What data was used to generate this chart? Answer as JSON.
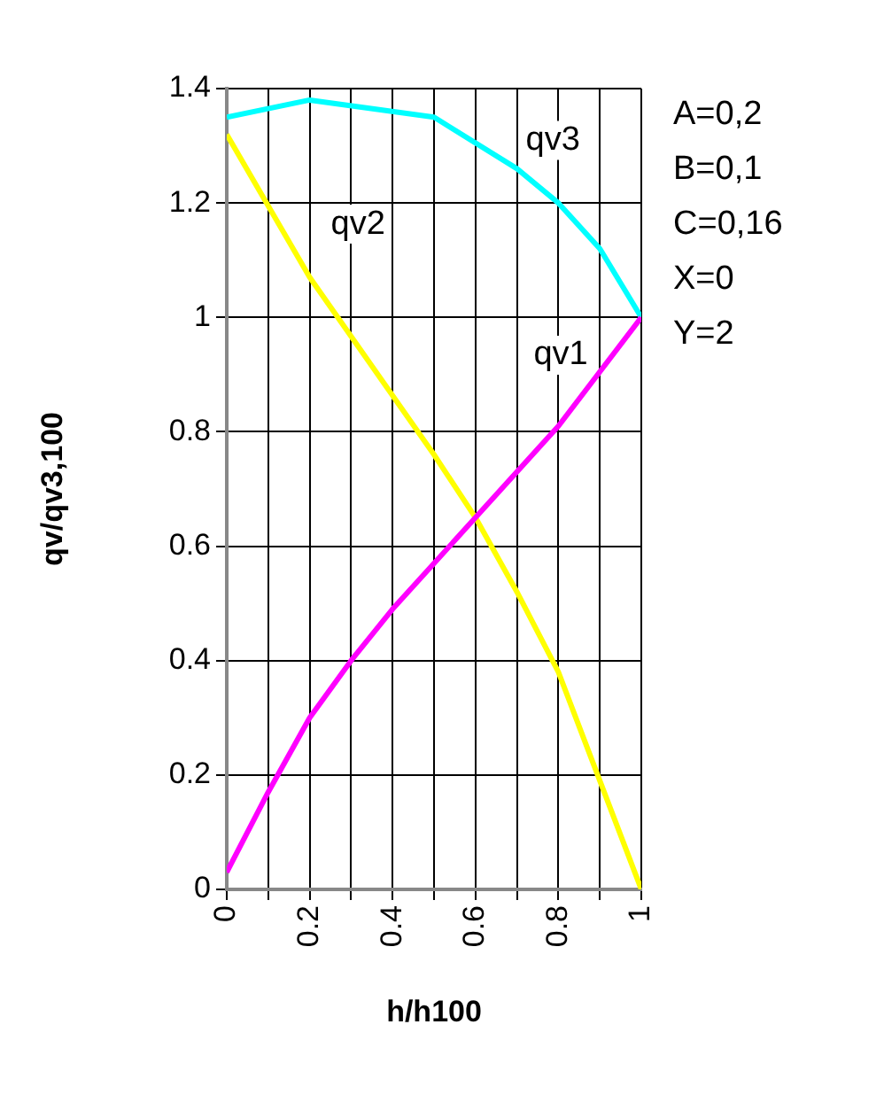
{
  "chart_data": {
    "type": "line",
    "xlabel": "h/h100",
    "ylabel": "qv/qv3,100",
    "series": [
      {
        "name": "qv1",
        "color": "#ff00ff",
        "x": [
          0,
          0.1,
          0.2,
          0.3,
          0.4,
          0.6,
          0.8,
          1
        ],
        "values": [
          0.03,
          0.17,
          0.3,
          0.4,
          0.49,
          0.65,
          0.81,
          1
        ]
      },
      {
        "name": "qv2",
        "color": "#ffff00",
        "x": [
          0,
          0.2,
          0.5,
          0.6,
          0.7,
          0.8,
          0.9,
          1
        ],
        "values": [
          1.32,
          1.07,
          0.76,
          0.65,
          0.52,
          0.38,
          0.19,
          0
        ]
      },
      {
        "name": "qv3",
        "color": "#00ffff",
        "x": [
          0,
          0.2,
          0.5,
          0.7,
          0.8,
          0.9,
          1
        ],
        "values": [
          1.35,
          1.38,
          1.35,
          1.26,
          1.2,
          1.12,
          1
        ]
      }
    ],
    "xlim": [
      0,
      1
    ],
    "xticks": [
      0,
      {
        "value": 0.1,
        "label": null
      },
      0.2,
      {
        "value": 0.3,
        "label": null
      },
      0.4,
      {
        "value": 0.5,
        "label": null
      },
      0.6,
      {
        "value": 0.7,
        "label": null
      },
      0.8,
      {
        "value": 0.9,
        "label": null
      },
      1
    ],
    "ylim": [
      0,
      1.4
    ],
    "yticks": [
      0,
      0.2,
      0.4,
      0.6,
      0.8,
      1,
      1.2,
      1.4
    ],
    "grid": true,
    "legend": false,
    "marker": "none",
    "line_style": "solid",
    "annotations": [
      "A=0,2",
      "B=0,1",
      "C=0,16",
      "X=0",
      "Y=2"
    ]
  }
}
